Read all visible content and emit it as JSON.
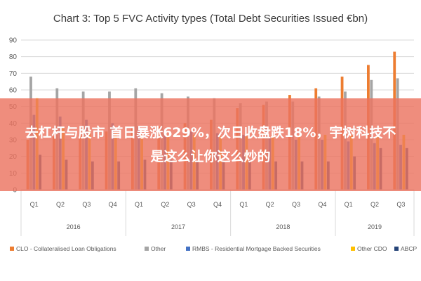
{
  "overlay_text": "去杠杆与股市 首日暴涨629%，次日收盘跌18%，宇树科技不是这么让你这么炒的",
  "chart_data": {
    "type": "bar",
    "title": "Chart 3: Top 5 FVC Activity types (Total Debt Securities Issued €bn)",
    "ylim": [
      0,
      90
    ],
    "yticks": [
      0,
      10,
      20,
      30,
      40,
      50,
      60,
      70,
      80,
      90
    ],
    "grid": true,
    "legend_position": "bottom",
    "categories": [
      "Q1",
      "Q2",
      "Q3",
      "Q4",
      "Q1",
      "Q2",
      "Q3",
      "Q4",
      "Q1",
      "Q2",
      "Q3",
      "Q4",
      "Q1",
      "Q2",
      "Q3"
    ],
    "groups": [
      {
        "label": "2016",
        "count": 4
      },
      {
        "label": "2017",
        "count": 4
      },
      {
        "label": "2018",
        "count": 4
      },
      {
        "label": "2019",
        "count": 3
      }
    ],
    "series": [
      {
        "name": "CLO - Collateralised Loan Obligations",
        "color": "#ed7d31",
        "values": [
          30,
          32,
          33,
          35,
          37,
          38,
          40,
          42,
          49,
          51,
          57,
          61,
          68,
          75,
          83
        ]
      },
      {
        "name": "Other",
        "color": "#a5a5a5",
        "values": [
          68,
          61,
          59,
          59,
          61,
          58,
          56,
          55,
          52,
          53,
          53,
          56,
          59,
          66,
          67
        ]
      },
      {
        "name": "RMBS - Residential Mortgage Backed Securities",
        "color": "#4472c4",
        "values": [
          45,
          44,
          42,
          40,
          38,
          36,
          35,
          34,
          33,
          31,
          30,
          30,
          29,
          28,
          27
        ]
      },
      {
        "name": "Other CDO",
        "color": "#ffc000",
        "values": [
          55,
          37,
          36,
          34,
          33,
          33,
          33,
          32,
          32,
          33,
          33,
          33,
          33,
          32,
          33
        ]
      },
      {
        "name": "ABCP",
        "color": "#264478",
        "values": [
          21,
          18,
          17,
          17,
          18,
          18,
          17,
          17,
          17,
          17,
          17,
          17,
          20,
          25,
          25
        ]
      }
    ]
  }
}
